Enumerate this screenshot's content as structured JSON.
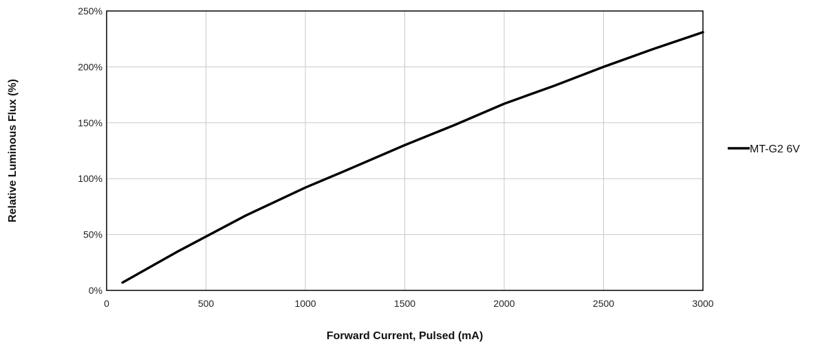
{
  "chart_data": {
    "type": "line",
    "xlabel": "Forward Current, Pulsed (mA)",
    "ylabel": "Relative Luminous Flux (%)",
    "xlim": [
      0,
      3000
    ],
    "ylim": [
      0,
      250
    ],
    "x_ticks": [
      "0",
      "500",
      "1000",
      "1500",
      "2000",
      "2500",
      "3000"
    ],
    "y_ticks": [
      "0%",
      "50%",
      "100%",
      "150%",
      "200%",
      "250%"
    ],
    "grid": true,
    "legend_position": "right",
    "series": [
      {
        "name": "MT-G2 6V",
        "color": "#000000",
        "x": [
          80,
          350,
          700,
          1000,
          1200,
          1500,
          1750,
          2000,
          2250,
          2500,
          2750,
          3000
        ],
        "y": [
          7,
          34,
          67,
          92,
          107,
          130,
          148,
          167,
          183,
          200,
          216,
          231
        ]
      }
    ]
  }
}
